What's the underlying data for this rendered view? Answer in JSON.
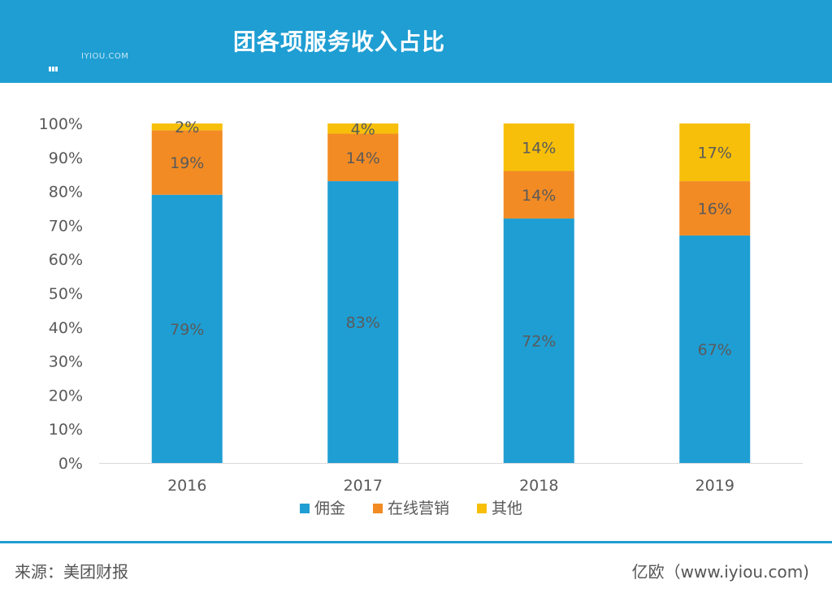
{
  "header": {
    "title": "团各项服务收入占比",
    "logo_text": "IYIOU.COM"
  },
  "footer": {
    "source": "来源：美团财报",
    "credit": "亿欧（www.iyiou.com)"
  },
  "colors": {
    "header": "#1f9ed3",
    "commission": "#1f9ed3",
    "online_marketing": "#f28b24",
    "other": "#f7bf0a"
  },
  "chart_data": {
    "type": "bar",
    "stacked": true,
    "categories": [
      "2016",
      "2017",
      "2018",
      "2019"
    ],
    "series": [
      {
        "name": "佣金",
        "values": [
          79,
          83,
          72,
          67
        ],
        "labels": [
          "79%",
          "83%",
          "72%",
          "67%"
        ],
        "color": "#1f9ed3"
      },
      {
        "name": "在线营销",
        "values": [
          19,
          14,
          14,
          16
        ],
        "labels": [
          "19%",
          "14%",
          "14%",
          "16%"
        ],
        "color": "#f28b24"
      },
      {
        "name": "其他",
        "values": [
          2,
          4,
          14,
          17
        ],
        "labels": [
          "2%",
          "4%",
          "14%",
          "17%"
        ],
        "color": "#f7bf0a"
      }
    ],
    "y_ticks": [
      "0%",
      "10%",
      "20%",
      "30%",
      "40%",
      "50%",
      "60%",
      "70%",
      "80%",
      "90%",
      "100%"
    ],
    "ylim": [
      0,
      100
    ],
    "legend_position": "bottom",
    "grid": false
  }
}
